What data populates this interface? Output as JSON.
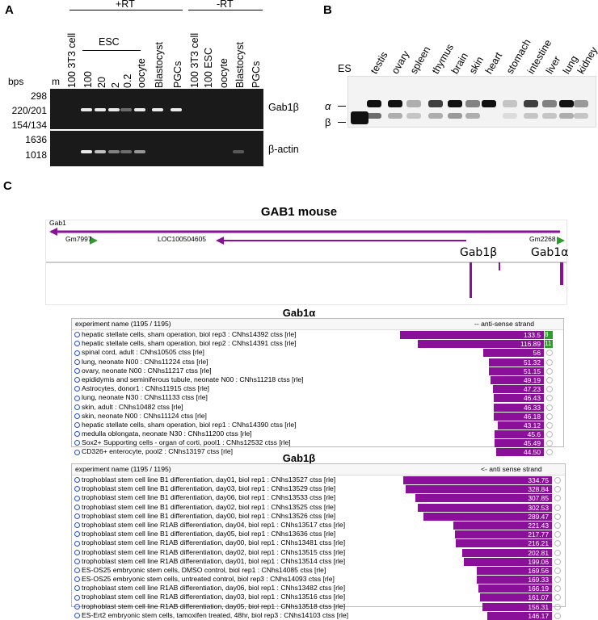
{
  "panelA": {
    "label": "A",
    "plus_rt": "+RT",
    "minus_rt": "-RT",
    "esc": "ESC",
    "bps": "bps",
    "marker": "m",
    "lanes": [
      "100 3T3 cell",
      "100",
      "20",
      "2",
      "0.2",
      "oocyte",
      "Blastocyst",
      "PGCs",
      "100 3T3 cell",
      "100 ESC",
      "oocyte",
      "Blastocyst",
      "PGCs"
    ],
    "sizes_top": [
      "298",
      "220/201",
      "154/134"
    ],
    "sizes_bottom": [
      "1636",
      "1018"
    ],
    "gene_top": "Gab1β",
    "gene_bottom": "β-actin"
  },
  "panelB": {
    "label": "B",
    "lanes": [
      "ES",
      "testis",
      "ovary",
      "spleen",
      "thymus",
      "brain",
      "skin",
      "heart",
      "stomach",
      "intestine",
      "liver",
      "lung",
      "kidney"
    ],
    "alpha": "α",
    "beta": "β"
  },
  "panelC": {
    "label": "C",
    "title": "GAB1  mouse",
    "track_labels": {
      "gab1": "Gab1",
      "gm7997": "Gm7997",
      "loc": "LOC100504605",
      "gm2268": "Gm2268",
      "gab1b": "Gab1β",
      "gab1a": "Gab1α"
    },
    "alpha_table": {
      "title": "Gab1α",
      "header": "experiment name (1195 / 1195)",
      "strand": "-- anti-sense strand",
      "rows": [
        {
          "name": "hepatic stellate cells, sham operation, biol rep3 : CNhs14392 ctss [rle]",
          "value": 133.5,
          "label": "133.5",
          "extra": "8"
        },
        {
          "name": "hepatic stellate cells, sham operation, biol rep2 : CNhs14391 ctss [rle]",
          "value": 116.89,
          "label": "116.89",
          "extra": "11"
        },
        {
          "name": "spinal cord, adult : CNhs10505 ctss [rle]",
          "value": 56,
          "label": "56",
          "extra": ""
        },
        {
          "name": "lung, neonate N00 : CNhs11224 ctss [rle]",
          "value": 51.32,
          "label": "51.32",
          "extra": ""
        },
        {
          "name": "ovary, neonate N00 : CNhs11217 ctss [rle]",
          "value": 51.15,
          "label": "51.15",
          "extra": ""
        },
        {
          "name": "epididymis and seminiferous tubule, neonate N00 : CNhs11218 ctss [rle]",
          "value": 49.19,
          "label": "49.19",
          "extra": ""
        },
        {
          "name": "Astrocytes, donor1 : CNhs11915 ctss [rle]",
          "value": 47.23,
          "label": "47.23",
          "extra": ""
        },
        {
          "name": "lung, neonate N30 : CNhs11133 ctss [rle]",
          "value": 46.43,
          "label": "46.43",
          "extra": ""
        },
        {
          "name": "skin, adult : CNhs10482 ctss [rle]",
          "value": 46.33,
          "label": "46.33",
          "extra": ""
        },
        {
          "name": "skin, neonate N00 : CNhs11124 ctss [rle]",
          "value": 46.18,
          "label": "46.18",
          "extra": ""
        },
        {
          "name": "hepatic stellate cells, sham operation, biol rep1 : CNhs14390 ctss [rle]",
          "value": 43.12,
          "label": "43.12",
          "extra": ""
        },
        {
          "name": "medulla oblongata, neonate N30 : CNhs11200 ctss [rle]",
          "value": 45.6,
          "label": "45.6",
          "extra": ""
        },
        {
          "name": "Sox2+ Supporting cells - organ of corti, pool1 : CNhs12532 ctss [rle]",
          "value": 45.49,
          "label": "45.49",
          "extra": ""
        },
        {
          "name": "CD326+ enterocyte, pool2 : CNhs13197 ctss [rle]",
          "value": 44.5,
          "label": "44.50",
          "extra": ""
        }
      ]
    },
    "beta_table": {
      "title": "Gab1β",
      "header": "experiment name (1195 / 1195)",
      "strand": "<- anti sense strand",
      "rows": [
        {
          "name": "trophoblast stem cell line B1 differentiation, day01, biol rep1 : CNhs13527 ctss [rle]",
          "value": 334.75,
          "label": "334.75"
        },
        {
          "name": "trophoblast stem cell line B1 differentiation, day03, biol rep1 : CNhs13529 ctss [rle]",
          "value": 328.84,
          "label": "328.84"
        },
        {
          "name": "trophoblast stem cell line B1 differentiation, day06, biol rep1 : CNhs13533 ctss [rle]",
          "value": 307.85,
          "label": "307.85"
        },
        {
          "name": "trophoblast stem cell line B1 differentiation, day02, biol rep1 : CNhs13525 ctss [rle]",
          "value": 302.53,
          "label": "302.53"
        },
        {
          "name": "trophoblast stem cell line B1 differentiation, day00, biol rep1 : CNhs13526 ctss [rle]",
          "value": 289.47,
          "label": "289.47"
        },
        {
          "name": "trophoblast stem cell line R1AB differentiation, day04, biol rep1 : CNhs13517 ctss [rle]",
          "value": 221.43,
          "label": "221.43"
        },
        {
          "name": "trophoblast stem cell line B1 differentiation, day05, biol rep1 : CNhs13636 ctss [rle]",
          "value": 217.77,
          "label": "217.77"
        },
        {
          "name": "trophoblast stem cell line R1AB differentiation, day00, biol rep1 : CNhs13481 ctss [rle]",
          "value": 216.21,
          "label": "216.21"
        },
        {
          "name": "trophoblast stem cell line R1AB differentiation, day02, biol rep1 : CNhs13515 ctss [rle]",
          "value": 202.81,
          "label": "202.81"
        },
        {
          "name": "trophoblast stem cell line R1AB differentiation, day01, biol rep1 : CNhs13514 ctss [rle]",
          "value": 199.06,
          "label": "199.06"
        },
        {
          "name": "ES-OS25 embryonic stem cells, DMSO control, biol rep1 : CNhs14085 ctss [rle]",
          "value": 169.56,
          "label": "169.56"
        },
        {
          "name": "ES-OS25 embryonic stem cells, untreated control, biol rep3 : CNhs14093 ctss [rle]",
          "value": 169.33,
          "label": "169.33"
        },
        {
          "name": "trophoblast stem cell line R1AB differentiation, day06, biol rep1 : CNhs13482 ctss [rle]",
          "value": 166.19,
          "label": "166.19"
        },
        {
          "name": "trophoblast stem cell line R1AB differentiation, day03, biol rep1 : CNhs13516 ctss [rle]",
          "value": 161.07,
          "label": "161.07"
        },
        {
          "name": "trophoblast stem cell line R1AB differentiation, day05, biol rep1 : CNhs13518 ctss [rle]",
          "value": 156.31,
          "label": "156.31"
        },
        {
          "name": "ES-Ert2 embryonic stem cells, tamoxifen treated, 48hr, biol rep3 : CNhs14103 ctss [rle]",
          "value": 146.17,
          "label": "146.17"
        }
      ]
    }
  }
}
